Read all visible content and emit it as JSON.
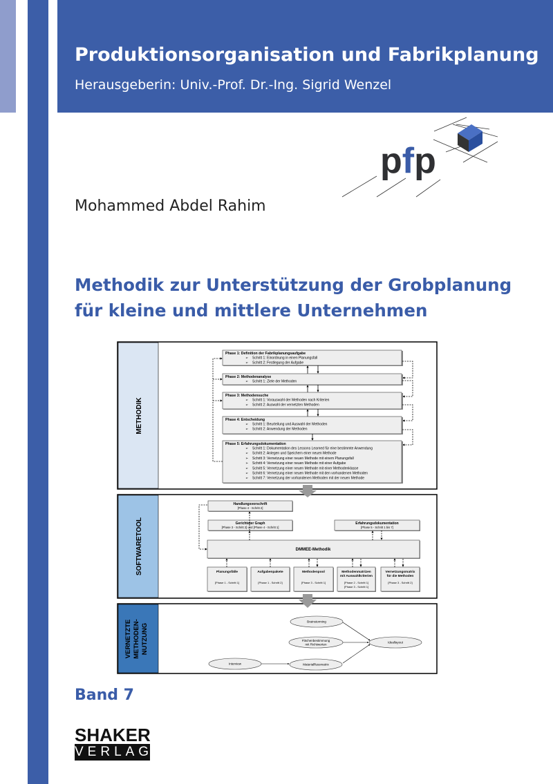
{
  "series": {
    "title": "Produktionsorganisation und Fabrikplanung",
    "editor": "Herausgeberin: Univ.-Prof. Dr.-Ing. Sigrid Wenzel"
  },
  "logo": {
    "text": "pfp",
    "colors": {
      "p": "#2f3033",
      "f": "#3a5ca8",
      "cube": "#2f55a4"
    }
  },
  "author": "Mohammed Abdel Rahim",
  "title": {
    "line1": "Methodik zur Unterstützung der Grobplanung",
    "line2": "für kleine und mittlere Unternehmen"
  },
  "diagram": {
    "sections": [
      "METHODIK",
      "SOFTWARETOOL",
      "VERNETZTE",
      "METHODEN-",
      "NUTZUNG"
    ],
    "phases": [
      {
        "title": "Phase 1: Definition der Fabrikplanungsaufgabe",
        "steps": [
          "Schritt 1: Einordnung in einen Planungsfall",
          "Schritt 2: Festlegung der Aufgabe"
        ]
      },
      {
        "title": "Phase 2: Methodenanalyse",
        "steps": [
          "Schritt 1: Ziele der Methoden"
        ]
      },
      {
        "title": "Phase 3: Methodensuche",
        "steps": [
          "Schritt 1: Vorauswahl der Methoden nach Kriterien",
          "Schritt 2: Auswahl der vernetzten Methoden"
        ]
      },
      {
        "title": "Phase 4: Entscheidung",
        "steps": [
          "Schritt 1: Beurteilung und Auswahl der Methoden",
          "Schritt 2: Anwendung der Methoden"
        ]
      },
      {
        "title": "Phase 5: Erfahrungsdokumentation",
        "steps": [
          "Schritt 1: Dokumentation des Lessons Learned für eine bestimmte Anwendung",
          "Schritt 2: Anlegen und Speichern einer neuen Methode",
          "Schritt 3: Vernetzung einer neuen Methode mit einem Planungsfall",
          "Schritt 4: Vernetzung einer neuen Methode mit einer Aufgabe",
          "Schritt 5: Vernetzung einer neuen Methode mit einer Methodenklasse",
          "Schritt 6: Vernetzung einer neuen Methode mit den vorhandenen Methoden",
          "Schritt 7: Vernetzung der vorhandenen Methoden mit der neuen Methode"
        ]
      }
    ],
    "tool": {
      "handlung": {
        "title": "Handlungsvorschrift",
        "ref": "[Phase 4 - Schritt 2]"
      },
      "graph": {
        "title": "Gerichteter Graph",
        "ref": "[Phase 3 - Schritt 2] und [Phase 4 - Schritt 1]"
      },
      "erfahrung": {
        "title": "Erfahrungsdokumentation",
        "ref": "[Phase 5 - Schritt 1 bis 7]"
      },
      "core": "DMMEE-Methodik",
      "modules": [
        {
          "title": "Planungsfälle",
          "title2": "",
          "ref": "[Phase 1 - Schritt 1]",
          "ref2": ""
        },
        {
          "title": "Aufgabenpakete",
          "title2": "",
          "ref": "[Phase 1 - Schritt 2]",
          "ref2": ""
        },
        {
          "title": "Methodenpool",
          "title2": "",
          "ref": "[Phase 3 - Schritt 1]",
          "ref2": ""
        },
        {
          "title": "Methodenmatrizen",
          "title2": "mit Auswahlkriterien",
          "ref": "[Phase 2 - Schritt 1]",
          "ref2": "[Phase 3 - Schritt 1]"
        },
        {
          "title": "Vernetzungsmatrix",
          "title2": "für die Methoden",
          "ref": "[Phase 3 - Schritt 2]",
          "ref2": ""
        }
      ]
    },
    "network": {
      "brainstorming": "Brainstorming",
      "flaeche1": "Flächenbestimmung",
      "flaeche2": "mit Richtwerten",
      "ideallayout": "Ideallayout",
      "interview": "Interview",
      "materialfluss": "Materialflussmatrix"
    },
    "colors": {
      "methodik": "#dbe6f3",
      "softwaretool": "#9dc3e6",
      "vernetzte": "#3a77b8"
    }
  },
  "band": "Band 7",
  "publisher": {
    "line1": "SHAKER",
    "line2": "VERLAG"
  }
}
